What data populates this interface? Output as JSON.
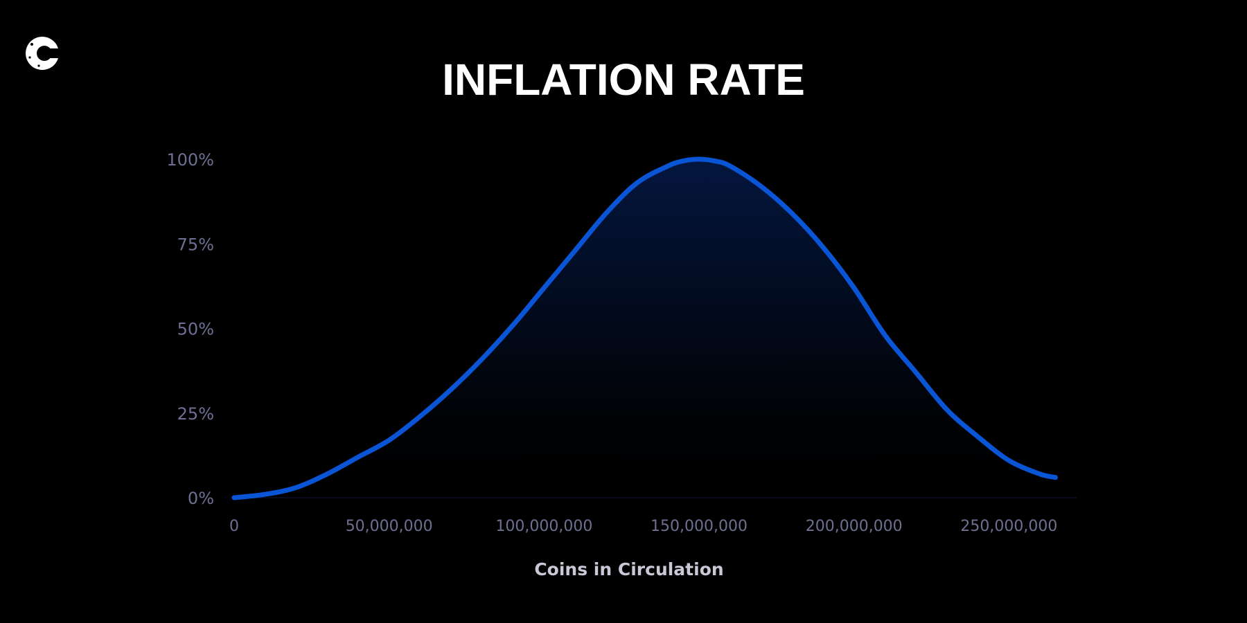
{
  "brand": {
    "logo_icon": "coinmarketcap-c-logo-icon"
  },
  "colors": {
    "background": "#000000",
    "line": "#0a55d6",
    "fill_top": "#04163f",
    "axis_text": "#6f6f93",
    "label_text": "#c8c8d6"
  },
  "chart_data": {
    "type": "area",
    "title": "INFLATION RATE",
    "xlabel": "Coins in Circulation",
    "ylabel": "",
    "x_ticks": [
      "0",
      "50,000,000",
      "100,000,000",
      "150,000,000",
      "200,000,000",
      "250,000,000"
    ],
    "y_ticks": [
      "0%",
      "25%",
      "50%",
      "75%",
      "100%"
    ],
    "xlim": [
      0,
      265000000
    ],
    "ylim": [
      0,
      100
    ],
    "grid": false,
    "series": [
      {
        "x": [
          0,
          10000000,
          20000000,
          30000000,
          40000000,
          50000000,
          60000000,
          70000000,
          80000000,
          90000000,
          100000000,
          110000000,
          120000000,
          130000000,
          140000000,
          145000000,
          150000000,
          155000000,
          160000000,
          170000000,
          180000000,
          190000000,
          200000000,
          210000000,
          220000000,
          230000000,
          240000000,
          250000000,
          260000000,
          265000000
        ],
        "y": [
          0,
          1,
          3,
          7,
          12,
          17,
          24,
          32,
          41,
          51,
          62,
          73,
          84,
          93,
          98,
          99.5,
          100,
          99.5,
          98,
          92,
          84,
          74,
          62,
          48,
          37,
          26,
          18,
          11,
          7,
          6
        ]
      }
    ]
  }
}
